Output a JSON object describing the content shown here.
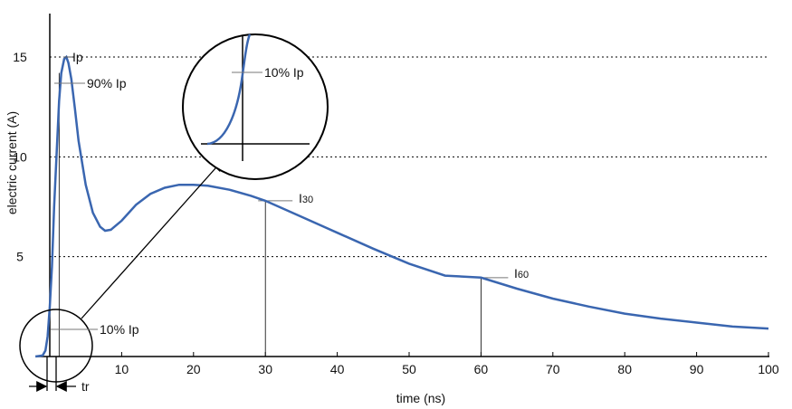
{
  "chart_data": {
    "type": "line",
    "xlabel": "time (ns)",
    "ylabel": "electric current (A)",
    "xlim": [
      -2,
      100
    ],
    "ylim": [
      0,
      16.5
    ],
    "x_ticks": [
      10,
      20,
      30,
      40,
      50,
      60,
      70,
      80,
      90,
      100
    ],
    "y_ticks": [
      5,
      10,
      15
    ],
    "grid": "dotted horizontal lines at y ticks",
    "series": [
      {
        "color": "#3a66b0",
        "points": [
          [
            -2,
            0
          ],
          [
            -1,
            0.05
          ],
          [
            -0.6,
            0.3
          ],
          [
            -0.3,
            1.0
          ],
          [
            0,
            2.5
          ],
          [
            0.3,
            4.5
          ],
          [
            0.6,
            7.5
          ],
          [
            1,
            10.5
          ],
          [
            1.3,
            12.8
          ],
          [
            1.6,
            14.2
          ],
          [
            2,
            14.9
          ],
          [
            2.3,
            15.0
          ],
          [
            2.6,
            14.7
          ],
          [
            3,
            13.9
          ],
          [
            3.5,
            12.4
          ],
          [
            4,
            10.8
          ],
          [
            5,
            8.6
          ],
          [
            6,
            7.2
          ],
          [
            7,
            6.5
          ],
          [
            7.7,
            6.3
          ],
          [
            8.5,
            6.35
          ],
          [
            10,
            6.8
          ],
          [
            12,
            7.6
          ],
          [
            14,
            8.15
          ],
          [
            16,
            8.45
          ],
          [
            18,
            8.6
          ],
          [
            20,
            8.6
          ],
          [
            22,
            8.55
          ],
          [
            25,
            8.35
          ],
          [
            28,
            8.05
          ],
          [
            30,
            7.8
          ],
          [
            35,
            7.0
          ],
          [
            40,
            6.2
          ],
          [
            45,
            5.4
          ],
          [
            50,
            4.65
          ],
          [
            55,
            4.05
          ],
          [
            60,
            3.95
          ],
          [
            65,
            3.4
          ],
          [
            70,
            2.9
          ],
          [
            75,
            2.5
          ],
          [
            80,
            2.15
          ],
          [
            85,
            1.9
          ],
          [
            90,
            1.7
          ],
          [
            95,
            1.5
          ],
          [
            100,
            1.4
          ]
        ]
      }
    ],
    "annotations": {
      "ip": "Ip",
      "ninety": "90% Ip",
      "ten": "10% Ip",
      "ten_zoom": "10% Ip",
      "i30": "I30",
      "i60": "I60",
      "tr": "tr"
    }
  }
}
